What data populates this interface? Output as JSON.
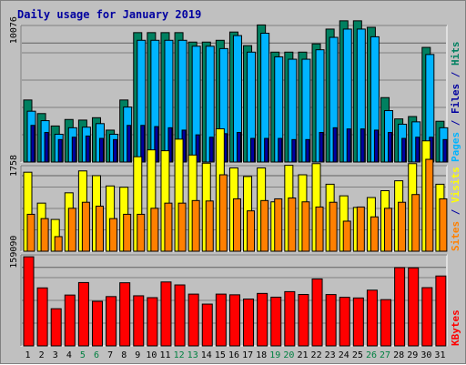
{
  "chart_data": {
    "type": "bar",
    "title": "Daily usage for January 2019",
    "colors": {
      "title": "#0000a0",
      "hits": "#00b4ff",
      "files": "#0000a0",
      "pages": "#008080",
      "hits_dark": "#008060",
      "visits": "#ffff00",
      "sites": "#ff8000",
      "kbytes": "#ff0000",
      "background": "#c0c0c0",
      "gridline": "#808080",
      "weekend_day_label": "#008040"
    },
    "days": [
      "1",
      "2",
      "3",
      "4",
      "5",
      "6",
      "7",
      "8",
      "9",
      "10",
      "11",
      "12",
      "13",
      "14",
      "15",
      "16",
      "17",
      "18",
      "19",
      "20",
      "21",
      "22",
      "23",
      "24",
      "25",
      "26",
      "27",
      "28",
      "29",
      "30",
      "31"
    ],
    "weekend_days": [
      "5",
      "6",
      "12",
      "13",
      "19",
      "20",
      "26",
      "27"
    ],
    "panels": [
      {
        "id": "hits-files-pages",
        "tick_label": "10076",
        "tick_value": 10076,
        "y_max": 11400,
        "legend": [
          {
            "text": "Pages",
            "color": "#00b4ff"
          },
          {
            "text": " / ",
            "color": "#0000a0"
          },
          {
            "text": "Files",
            "color": "#0000a0"
          },
          {
            "text": " / ",
            "color": "#0000a0"
          },
          {
            "text": "Hits",
            "color": "#008060"
          }
        ],
        "series": [
          {
            "name": "Hits",
            "color": "#008060",
            "values": [
              5250,
              4100,
              3050,
              3600,
              3550,
              3750,
              2700,
              5250,
              10950,
              10950,
              10950,
              10950,
              10150,
              10150,
              10300,
              11000,
              9850,
              11600,
              9300,
              9300,
              9300,
              10000,
              11250,
              11950,
              11950,
              11400,
              5450,
              3650,
              3850,
              9700,
              3450
            ]
          },
          {
            "name": "Pages",
            "color": "#00b4ff",
            "values": [
              4300,
              3500,
              2350,
              2900,
              2950,
              3250,
              2350,
              4650,
              10300,
              10300,
              10300,
              10300,
              9800,
              9800,
              9600,
              10700,
              9300,
              10900,
              8900,
              8700,
              8700,
              9500,
              10550,
              11250,
              11250,
              10600,
              4350,
              3200,
              3400,
              9100,
              2900
            ]
          },
          {
            "name": "Files",
            "color": "#0000a0",
            "values": [
              3100,
              2500,
              1900,
              2100,
              2200,
              2000,
              1900,
              3100,
              3100,
              3000,
              2900,
              2700,
              2300,
              2100,
              2400,
              2500,
              2000,
              2000,
              2000,
              1900,
              1900,
              2500,
              2900,
              2800,
              2800,
              2700,
              2500,
              2000,
              2100,
              2100,
              1900
            ]
          }
        ]
      },
      {
        "id": "visits-sites",
        "tick_label": "1758",
        "tick_value": 1758,
        "y_max": 1950,
        "legend": [
          {
            "text": "Sites",
            "color": "#ff8000"
          },
          {
            "text": " / ",
            "color": "#0000a0"
          },
          {
            "text": "Visits",
            "color": "#ffff00"
          }
        ],
        "series": [
          {
            "name": "Visits",
            "color": "#ffff00",
            "values": [
              1840,
              1120,
              740,
              1360,
              1870,
              1760,
              1520,
              1490,
              2200,
              2360,
              2340,
              2610,
              2240,
              2050,
              2850,
              1940,
              1740,
              1940,
              1150,
              2000,
              1780,
              2040,
              1560,
              1290,
              1020,
              1250,
              1410,
              1640,
              2040,
              2570,
              1560
            ]
          },
          {
            "name": "Sites",
            "color": "#ff8000",
            "values": [
              860,
              760,
              340,
              1000,
              1140,
              1050,
              760,
              860,
              860,
              1000,
              1120,
              1120,
              1180,
              1170,
              1780,
              1220,
              940,
              1180,
              1220,
              1240,
              1150,
              1030,
              1140,
              700,
              1030,
              800,
              1000,
              1140,
              1320,
              2140,
              1220
            ]
          }
        ]
      },
      {
        "id": "kbytes",
        "tick_label": "159090",
        "tick_value": 159090,
        "y_max": 180700,
        "legend": [
          {
            "text": "KBytes",
            "color": "#ff0000"
          }
        ],
        "series": [
          {
            "name": "KBytes",
            "color": "#ff0000",
            "values": [
              180500,
              117500,
              75300,
              103000,
              128300,
              90300,
              99900,
              127900,
              101500,
              97700,
              129500,
              123500,
              104900,
              84700,
              104900,
              103500,
              94900,
              106300,
              98700,
              109900,
              104200,
              135600,
              104000,
              98400,
              97100,
              112900,
              93700,
              158500,
              158100,
              118000,
              141600
            ]
          }
        ]
      }
    ]
  }
}
